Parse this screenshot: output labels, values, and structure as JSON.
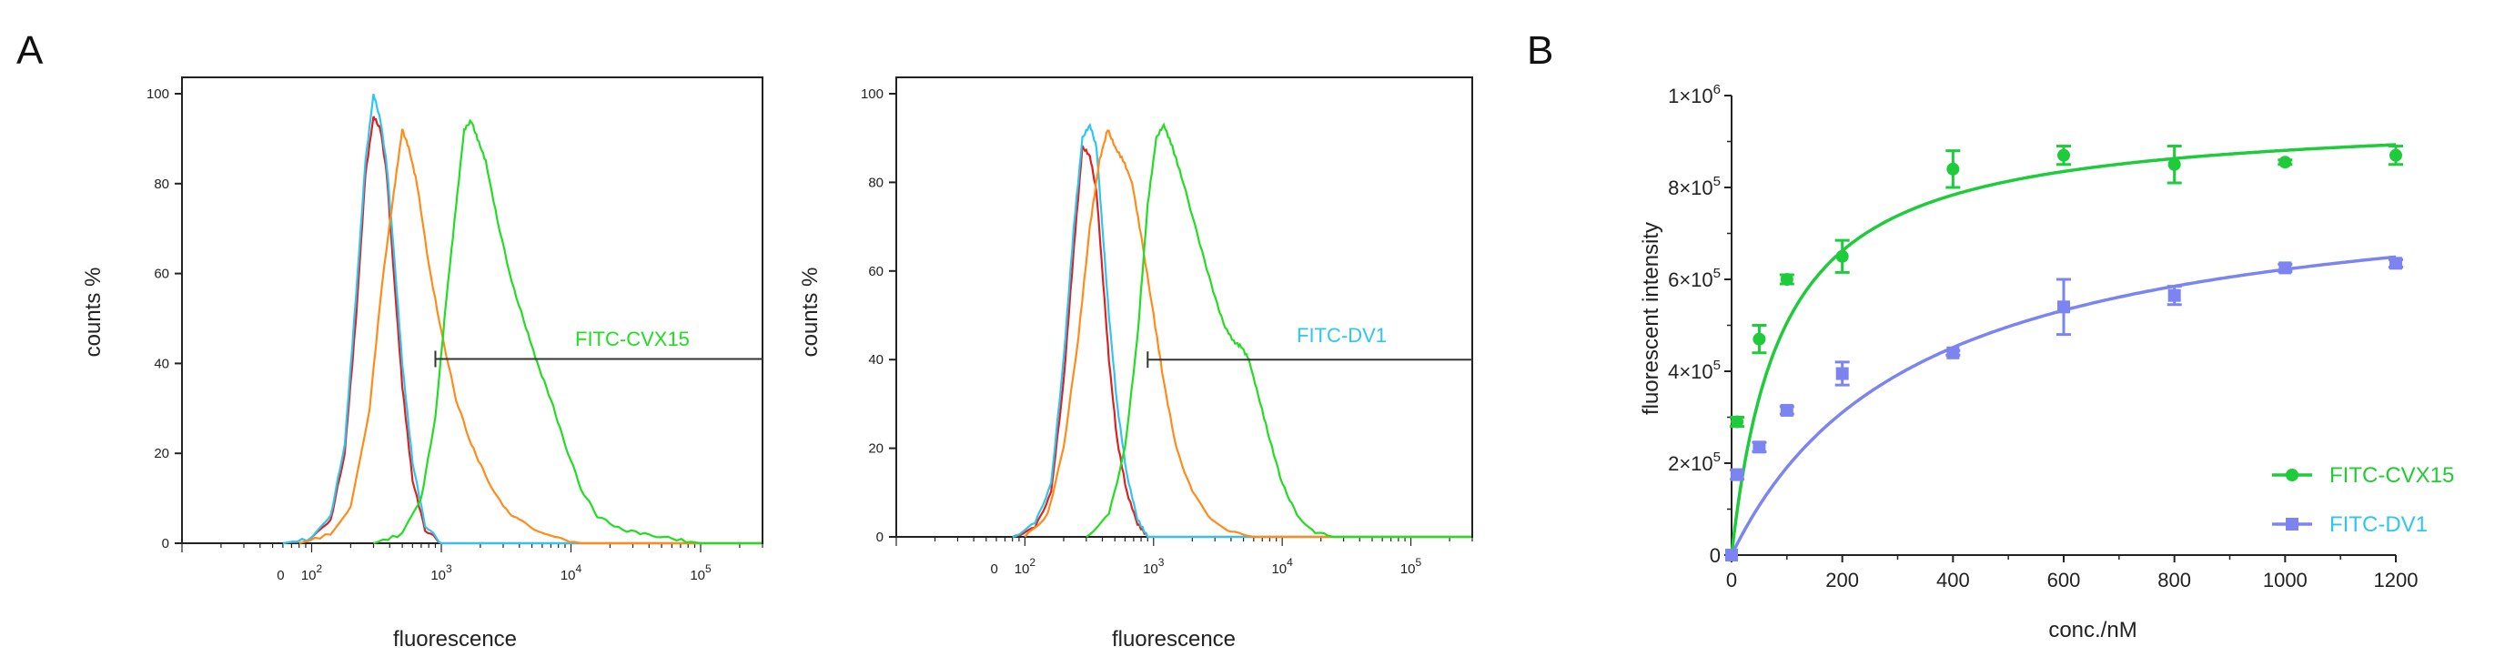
{
  "panel_labels": [
    "A",
    "B"
  ],
  "chart_data": [
    {
      "type": "line",
      "subtype": "flow-cytometry-histogram",
      "xlabel": "fluorescence",
      "ylabel": "counts %",
      "ylim": [
        0,
        100
      ],
      "yticks": [
        "0",
        "20",
        "40",
        "60",
        "80",
        "100"
      ],
      "xticks": [
        {
          "label": "0",
          "value": 0
        },
        {
          "label": "10",
          "sup": "2",
          "value": 100
        },
        {
          "label": "10",
          "sup": "3",
          "value": 1000
        },
        {
          "label": "10",
          "sup": "4",
          "value": 10000
        },
        {
          "label": "10",
          "sup": "5",
          "value": 100000
        }
      ],
      "gate": {
        "label": "FITC-CVX15",
        "from": 900,
        "to": 300000,
        "y": 41,
        "label_color": "#22dd22"
      },
      "series": [
        {
          "name": "red",
          "color": "#e02020",
          "points": [
            [
              60,
              0
            ],
            [
              100,
              1
            ],
            [
              140,
              5
            ],
            [
              180,
              20
            ],
            [
              220,
              50
            ],
            [
              260,
              82
            ],
            [
              300,
              95
            ],
            [
              340,
              92
            ],
            [
              380,
              82
            ],
            [
              430,
              60
            ],
            [
              500,
              35
            ],
            [
              600,
              14
            ],
            [
              750,
              3
            ],
            [
              1000,
              0
            ]
          ]
        },
        {
          "name": "blue",
          "color": "#2ec6f0",
          "points": [
            [
              60,
              0
            ],
            [
              100,
              1
            ],
            [
              140,
              6
            ],
            [
              180,
              22
            ],
            [
              220,
              55
            ],
            [
              260,
              85
            ],
            [
              300,
              100
            ],
            [
              340,
              94
            ],
            [
              380,
              84
            ],
            [
              430,
              65
            ],
            [
              500,
              40
            ],
            [
              600,
              18
            ],
            [
              750,
              4
            ],
            [
              1000,
              0
            ]
          ]
        },
        {
          "name": "orange",
          "color": "#ff8c1a",
          "points": [
            [
              80,
              0
            ],
            [
              140,
              2
            ],
            [
              200,
              8
            ],
            [
              280,
              30
            ],
            [
              350,
              58
            ],
            [
              430,
              78
            ],
            [
              500,
              92
            ],
            [
              560,
              88
            ],
            [
              650,
              80
            ],
            [
              800,
              62
            ],
            [
              1000,
              47
            ],
            [
              1300,
              32
            ],
            [
              1700,
              22
            ],
            [
              2200,
              15
            ],
            [
              3000,
              8
            ],
            [
              4000,
              5
            ],
            [
              5500,
              3
            ],
            [
              8000,
              1
            ],
            [
              12000,
              0
            ]
          ]
        },
        {
          "name": "green",
          "color": "#22dd22",
          "points": [
            [
              300,
              0
            ],
            [
              500,
              2
            ],
            [
              700,
              10
            ],
            [
              900,
              28
            ],
            [
              1100,
              55
            ],
            [
              1300,
              75
            ],
            [
              1500,
              92
            ],
            [
              1700,
              94
            ],
            [
              1900,
              90
            ],
            [
              2200,
              85
            ],
            [
              2700,
              72
            ],
            [
              3500,
              58
            ],
            [
              4500,
              48
            ],
            [
              5500,
              40
            ],
            [
              7000,
              32
            ],
            [
              9000,
              22
            ],
            [
              12000,
              12
            ],
            [
              16000,
              6
            ],
            [
              25000,
              3
            ],
            [
              40000,
              2
            ],
            [
              60000,
              1
            ],
            [
              100000,
              0
            ]
          ]
        }
      ]
    },
    {
      "type": "line",
      "subtype": "flow-cytometry-histogram",
      "xlabel": "fluorescence",
      "ylabel": "counts %",
      "ylim": [
        0,
        100
      ],
      "yticks": [
        "0",
        "20",
        "40",
        "60",
        "80",
        "100"
      ],
      "xticks": [
        {
          "label": "0",
          "value": 0
        },
        {
          "label": "10",
          "sup": "2",
          "value": 100
        },
        {
          "label": "10",
          "sup": "3",
          "value": 1000
        },
        {
          "label": "10",
          "sup": "4",
          "value": 10000
        },
        {
          "label": "10",
          "sup": "5",
          "value": 100000
        }
      ],
      "gate": {
        "label": "FITC-DV1",
        "from": 900,
        "to": 300000,
        "y": 40,
        "label_color": "#2ec6f0"
      },
      "series": [
        {
          "name": "red",
          "color": "#e02020",
          "points": [
            [
              80,
              0
            ],
            [
              120,
              2
            ],
            [
              160,
              10
            ],
            [
              200,
              35
            ],
            [
              240,
              65
            ],
            [
              280,
              88
            ],
            [
              320,
              86
            ],
            [
              360,
              78
            ],
            [
              400,
              60
            ],
            [
              450,
              40
            ],
            [
              520,
              22
            ],
            [
              620,
              10
            ],
            [
              750,
              3
            ],
            [
              900,
              0
            ]
          ]
        },
        {
          "name": "blue",
          "color": "#2ec6f0",
          "points": [
            [
              80,
              0
            ],
            [
              120,
              3
            ],
            [
              160,
              12
            ],
            [
              200,
              40
            ],
            [
              240,
              70
            ],
            [
              280,
              90
            ],
            [
              320,
              93
            ],
            [
              360,
              88
            ],
            [
              400,
              70
            ],
            [
              450,
              50
            ],
            [
              520,
              30
            ],
            [
              620,
              14
            ],
            [
              750,
              4
            ],
            [
              900,
              0
            ]
          ]
        },
        {
          "name": "orange",
          "color": "#ff8c1a",
          "points": [
            [
              100,
              0
            ],
            [
              150,
              5
            ],
            [
              200,
              20
            ],
            [
              260,
              45
            ],
            [
              320,
              70
            ],
            [
              380,
              85
            ],
            [
              440,
              92
            ],
            [
              500,
              88
            ],
            [
              580,
              85
            ],
            [
              680,
              80
            ],
            [
              800,
              68
            ],
            [
              1000,
              50
            ],
            [
              1200,
              35
            ],
            [
              1500,
              20
            ],
            [
              2000,
              10
            ],
            [
              2800,
              4
            ],
            [
              4000,
              1
            ],
            [
              6000,
              0
            ]
          ]
        },
        {
          "name": "green",
          "color": "#22dd22",
          "points": [
            [
              300,
              0
            ],
            [
              450,
              5
            ],
            [
              600,
              20
            ],
            [
              750,
              45
            ],
            [
              900,
              75
            ],
            [
              1050,
              90
            ],
            [
              1200,
              93
            ],
            [
              1400,
              88
            ],
            [
              1700,
              80
            ],
            [
              2200,
              68
            ],
            [
              2800,
              57
            ],
            [
              3500,
              48
            ],
            [
              4200,
              44
            ],
            [
              4800,
              43
            ],
            [
              5500,
              40
            ],
            [
              6500,
              32
            ],
            [
              8000,
              22
            ],
            [
              10000,
              12
            ],
            [
              13000,
              5
            ],
            [
              18000,
              1
            ],
            [
              25000,
              0
            ]
          ]
        }
      ]
    },
    {
      "type": "scatter",
      "subtype": "binding-curve",
      "xlabel": "conc./nM",
      "ylabel": "fluorescent intensity",
      "xlim": [
        0,
        1200
      ],
      "ylim": [
        0,
        1000000
      ],
      "xticks": [
        "0",
        "200",
        "400",
        "600",
        "800",
        "1000",
        "1200"
      ],
      "yticks": [
        {
          "value": 0,
          "label": "0",
          "exp": ""
        },
        {
          "value": 200000,
          "label": "2×10",
          "exp": "5"
        },
        {
          "value": 400000,
          "label": "4×10",
          "exp": "5"
        },
        {
          "value": 600000,
          "label": "6×10",
          "exp": "5"
        },
        {
          "value": 800000,
          "label": "8×10",
          "exp": "5"
        },
        {
          "value": 1000000,
          "label": "1×10",
          "exp": "6"
        }
      ],
      "legend_position": "lower-right",
      "series": [
        {
          "name": "FITC-CVX15",
          "color": "#1ecb3a",
          "marker": "circle",
          "x": [
            0,
            10,
            50,
            100,
            200,
            400,
            600,
            800,
            1000,
            1200
          ],
          "y": [
            0,
            290000,
            470000,
            600000,
            650000,
            840000,
            870000,
            850000,
            855000,
            870000
          ],
          "err": [
            0,
            10000,
            30000,
            10000,
            35000,
            40000,
            20000,
            40000,
            5000,
            20000
          ],
          "fit": {
            "bmax": 960000,
            "kd": 90
          }
        },
        {
          "name": "FITC-DV1",
          "color": "#7b84f0",
          "marker": "square",
          "x": [
            0,
            10,
            50,
            100,
            200,
            400,
            600,
            800,
            1000,
            1200
          ],
          "y": [
            0,
            175000,
            235000,
            315000,
            395000,
            440000,
            540000,
            565000,
            625000,
            635000
          ],
          "err": [
            0,
            10000,
            10000,
            8000,
            25000,
            5000,
            60000,
            20000,
            8000,
            8000
          ],
          "fit": {
            "bmax": 830000,
            "kd": 335
          }
        }
      ]
    }
  ]
}
